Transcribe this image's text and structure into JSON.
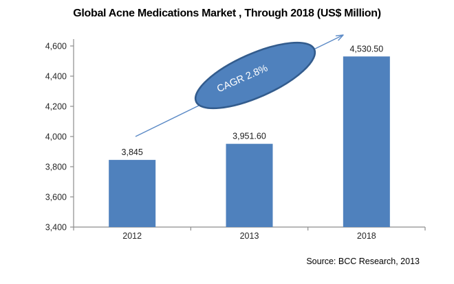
{
  "title": "Global Acne Medications Market , Through 2018 (US$ Million)",
  "source": "Source: BCC Research, 2013",
  "annotation": {
    "label": "CAGR 2.8%"
  },
  "colors": {
    "bar": "#4F81BD",
    "ellipse_fill": "#4F81BD",
    "ellipse_stroke": "#335C8D",
    "arrow": "#5B8AC6",
    "axis": "#8C8C8C"
  },
  "chart_data": {
    "type": "bar",
    "title": "Global Acne Medications Market , Through 2018 (US$ Million)",
    "categories": [
      "2012",
      "2013",
      "2018"
    ],
    "values": [
      3845,
      3951.6,
      4530.5
    ],
    "value_labels": [
      "3,845",
      "3,951.60",
      "4,530.50"
    ],
    "xlabel": "",
    "ylabel": "",
    "ylim": [
      3400,
      4600
    ],
    "ytick_step": 200,
    "ytick_labels": [
      "3,400",
      "3,600",
      "3,800",
      "4,000",
      "4,200",
      "4,400",
      "4,600"
    ],
    "grid": false,
    "legend": "none",
    "bar_color": "#4F81BD",
    "annotation": "CAGR 2.8%",
    "source": "Source: BCC Research, 2013"
  }
}
